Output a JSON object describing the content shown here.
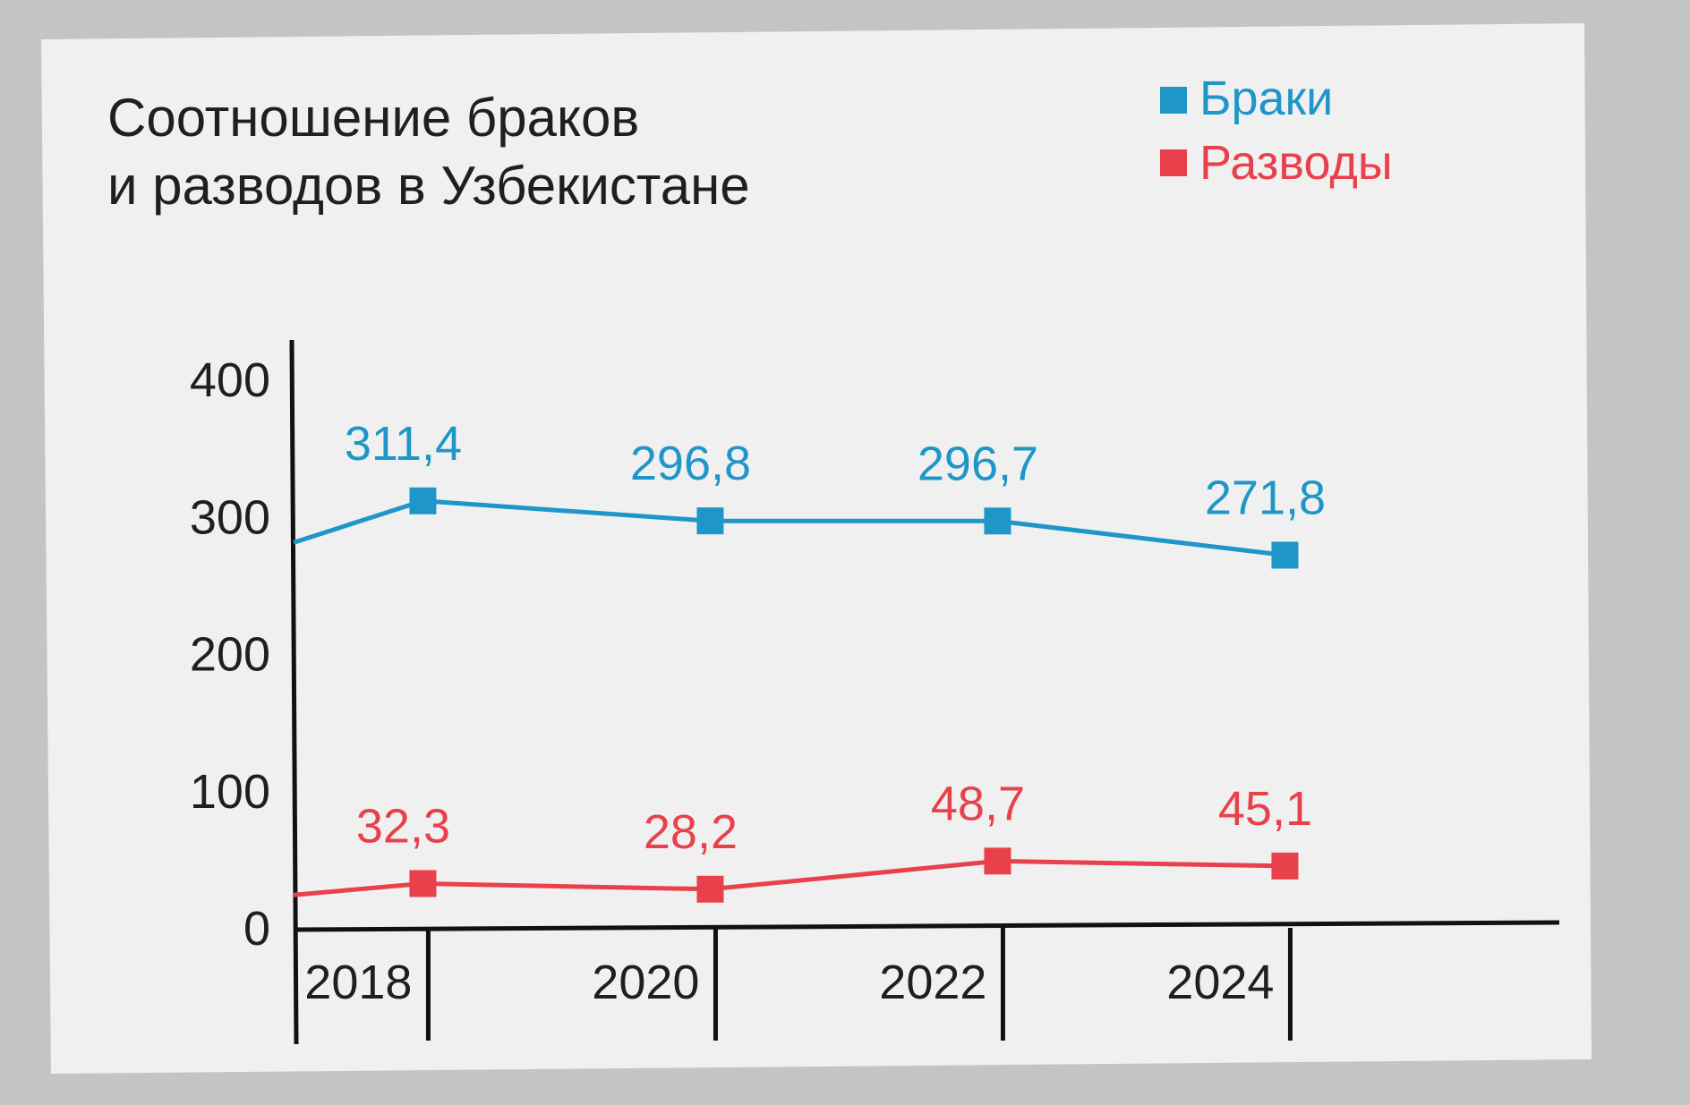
{
  "colors": {
    "background": "#c4c4c4",
    "card": "#f0f0f0",
    "text": "#1f1f1f",
    "axis": "#111111",
    "marriages": "#1f96c8",
    "divorces": "#e8414b"
  },
  "chart_data": {
    "type": "line",
    "title_lines": [
      "Соотношение браков",
      "и разводов в Узбекистане"
    ],
    "xlabel": "",
    "ylabel": "",
    "y_ticks": [
      "0",
      "100",
      "200",
      "300",
      "400"
    ],
    "ylim": [
      0,
      400
    ],
    "x_ticks": [
      "2018",
      "2020",
      "2022",
      "2024"
    ],
    "xlim": [
      2017.1,
      2025.1
    ],
    "legend_position": "top-right",
    "grid": false,
    "series": [
      {
        "name": "Браки",
        "color_key": "marriages",
        "start": {
          "x": 2017.1,
          "y": 281
        },
        "points": [
          {
            "x": 2018,
            "y": 311.4,
            "label": "311,4"
          },
          {
            "x": 2020,
            "y": 296.8,
            "label": "296,8"
          },
          {
            "x": 2022,
            "y": 296.7,
            "label": "296,7"
          },
          {
            "x": 2024,
            "y": 271.8,
            "label": "271,8"
          }
        ]
      },
      {
        "name": "Разводы",
        "color_key": "divorces",
        "start": {
          "x": 2017.1,
          "y": 24
        },
        "points": [
          {
            "x": 2018,
            "y": 32.3,
            "label": "32,3"
          },
          {
            "x": 2020,
            "y": 28.2,
            "label": "28,2"
          },
          {
            "x": 2022,
            "y": 48.7,
            "label": "48,7"
          },
          {
            "x": 2024,
            "y": 45.1,
            "label": "45,1"
          }
        ]
      }
    ]
  }
}
